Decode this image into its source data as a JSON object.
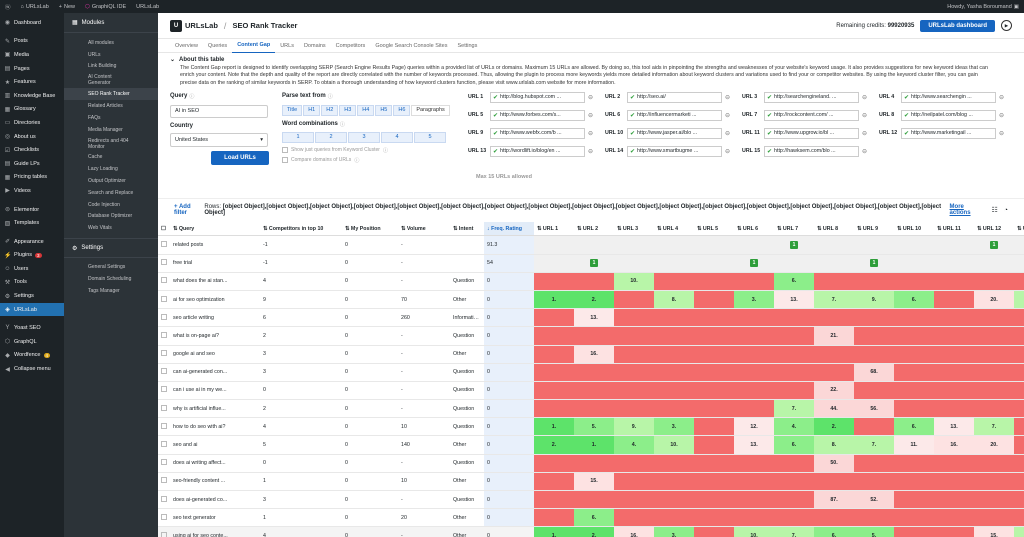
{
  "adminbar": {
    "site": "URLsLab",
    "new": "New",
    "graphiql": "GraphiQL IDE",
    "urlslab": "URLsLab",
    "howdy": "Howdy, Yasha Boroumand"
  },
  "wpmenu": [
    {
      "label": "Dashboard",
      "icon": "dashboard-icon",
      "glyph": "◉"
    },
    {
      "sep": true
    },
    {
      "label": "Posts",
      "icon": "pin-icon",
      "glyph": "✎"
    },
    {
      "label": "Media",
      "icon": "media-icon",
      "glyph": "▣"
    },
    {
      "label": "Pages",
      "icon": "pages-icon",
      "glyph": "▤"
    },
    {
      "label": "Features",
      "icon": "features-icon",
      "glyph": "★"
    },
    {
      "label": "Knowledge Base",
      "icon": "book-icon",
      "glyph": "▥"
    },
    {
      "label": "Glossary",
      "icon": "glossary-icon",
      "glyph": "▦"
    },
    {
      "label": "Directories",
      "icon": "folder-icon",
      "glyph": "▭"
    },
    {
      "label": "About us",
      "icon": "about-icon",
      "glyph": "◎"
    },
    {
      "label": "Checklists",
      "icon": "checklist-icon",
      "glyph": "☑"
    },
    {
      "label": "Guide LPs",
      "icon": "guide-icon",
      "glyph": "▤"
    },
    {
      "label": "Pricing tables",
      "icon": "pricing-icon",
      "glyph": "▦"
    },
    {
      "label": "Videos",
      "icon": "video-icon",
      "glyph": "▶"
    },
    {
      "sep": true
    },
    {
      "label": "Elementor",
      "icon": "elementor-icon",
      "glyph": "⊜"
    },
    {
      "label": "Templates",
      "icon": "templates-icon",
      "glyph": "▧"
    },
    {
      "sep": true
    },
    {
      "label": "Appearance",
      "icon": "brush-icon",
      "glyph": "✐"
    },
    {
      "label": "Plugins",
      "icon": "plugin-icon",
      "glyph": "⚡",
      "badge": "3"
    },
    {
      "label": "Users",
      "icon": "users-icon",
      "glyph": "☺"
    },
    {
      "label": "Tools",
      "icon": "tools-icon",
      "glyph": "⚒"
    },
    {
      "label": "Settings",
      "icon": "settings-icon",
      "glyph": "⚙"
    },
    {
      "label": "URLsLab",
      "icon": "urlslab-icon",
      "glyph": "◈",
      "active": true
    },
    {
      "sep": true
    },
    {
      "label": "Yoast SEO",
      "icon": "yoast-icon",
      "glyph": "Y"
    },
    {
      "label": "GraphQL",
      "icon": "graphql-icon",
      "glyph": "⬡"
    },
    {
      "label": "Wordfence",
      "icon": "wordfence-icon",
      "glyph": "◆",
      "badge": "4",
      "orange": true
    },
    {
      "label": "Collapse menu",
      "icon": "collapse-icon",
      "glyph": "◀"
    }
  ],
  "plugnav": {
    "modules_label": "Modules",
    "modules": [
      "All modules",
      "URLs",
      "Link Building",
      "AI Content Generator",
      "SEO Rank Tracker",
      "Related Articles",
      "FAQs",
      "Media Manager",
      "Redirects and 404 Monitor",
      "Cache",
      "Lazy Loading",
      "Output Optimizer",
      "Search and Replace",
      "Code Injection",
      "Database Optimizer",
      "Web Vitals"
    ],
    "active": "SEO Rank Tracker",
    "settings_label": "Settings",
    "settings": [
      "General Settings",
      "Domain Scheduling",
      "Tags Manager"
    ]
  },
  "header": {
    "logo": "URLsLab",
    "page": "SEO Rank Tracker",
    "credits_label": "Remaining credits:",
    "credits": "99920935",
    "dashboard_btn": "URLsLab dashboard"
  },
  "tabs": [
    "Overview",
    "Queries",
    "Content Gap",
    "URLs",
    "Domains",
    "Competitors",
    "Google Search Console Sites",
    "Settings"
  ],
  "active_tab": "Content Gap",
  "about": {
    "title": "About this table",
    "text": "The Content Gap report is designed to identify overlapping SERP (Search Engine Results Page) queries within a provided list of URLs or domains. Maximum 15 URLs are allowed. By doing so, this tool aids in pinpointing the strengths and weaknesses of your website's keyword usage. It also provides suggestions for new keyword ideas that can enrich your content. Note that the depth and quality of the report are directly correlated with the number of keywords processed. Thus, allowing the plugin to process more keywords yields more detailed information about keyword clusters and variations used to find your or competitor websites. By using the keyword cluster filter, you can gain precise data on the ranking of similar keywords in SERP. To obtain a thorough understanding of how keyword clusters function, please visit www.urlslab.com website for more information."
  },
  "filters": {
    "query_label": "Query",
    "query_value": "AI in SEO",
    "country_label": "Country",
    "country_value": "United States",
    "load_btn": "Load URLs",
    "parse_label": "Parse text from",
    "parse_opts": [
      "Title",
      "H1",
      "H2",
      "H3",
      "H4",
      "H5",
      "H6",
      "Paragraphs"
    ],
    "wc_label": "Word combinations",
    "wc_opts": [
      "1",
      "2",
      "3",
      "4",
      "5"
    ],
    "cb1": "Show just queries from Keyword Cluster",
    "cb2": "Compare domains of URLs",
    "max_urls": "Max 15 URLs allowed"
  },
  "urls": [
    {
      "label": "URL 1",
      "value": "http://blog.hubspot.com ..."
    },
    {
      "label": "URL 2",
      "value": "http://seo.ai/"
    },
    {
      "label": "URL 3",
      "value": "http://searchengineland. ..."
    },
    {
      "label": "URL 4",
      "value": "http://www.searchengin ..."
    },
    {
      "label": "URL 5",
      "value": "http://www.forbes.com/s..."
    },
    {
      "label": "URL 6",
      "value": "http://influencermarketi ..."
    },
    {
      "label": "URL 7",
      "value": "http://rockcontent.com/ ..."
    },
    {
      "label": "URL 8",
      "value": "http://neilpatel.com/blog ..."
    },
    {
      "label": "URL 9",
      "value": "http://www.webfx.com/b ..."
    },
    {
      "label": "URL 10",
      "value": "http://www.jasper.ai/blo ..."
    },
    {
      "label": "URL 11",
      "value": "http://www.upgrow.io/bl ..."
    },
    {
      "label": "URL 12",
      "value": "http://www.marketingail ..."
    },
    {
      "label": "URL 13",
      "value": "http://wordlift.io/blog/en ..."
    },
    {
      "label": "URL 14",
      "value": "http://www.smartbugme ..."
    },
    {
      "label": "URL 15",
      "value": "http://hawksem.com/blo ..."
    }
  ],
  "table": {
    "add_filter": "+ Add filter",
    "rows_label": "Rows:",
    "rows": [
      {
        "q": "related posts",
        "c": "-1",
        "p": "0",
        "v": "-",
        "i": "",
        "f": "91.3",
        "u": [
          null,
          null,
          null,
          null,
          null,
          null,
          "1",
          null,
          null,
          null,
          null,
          "1",
          null
        ],
        "g": true
      },
      {
        "q": "free trial",
        "c": "-1",
        "p": "0",
        "v": "-",
        "i": "",
        "f": "54",
        "u": [
          null,
          "1",
          null,
          null,
          null,
          "1",
          null,
          null,
          "1",
          null,
          null,
          null,
          null
        ],
        "g": true
      },
      {
        "q": "what does the ai stan...",
        "c": "4",
        "p": "0",
        "v": "-",
        "i": "Question",
        "f": "0",
        "u": [
          "",
          "",
          "10.",
          "",
          "",
          "",
          "6.",
          "",
          "",
          "",
          "",
          "",
          ""
        ]
      },
      {
        "q": "ai for seo optimization",
        "c": "9",
        "p": "0",
        "v": "70",
        "i": "Other",
        "f": "0",
        "u": [
          "1.",
          "2.",
          "",
          "8.",
          "",
          "3.",
          "13.",
          "7.",
          "9.",
          "6.",
          "",
          "20.",
          "10."
        ]
      },
      {
        "q": "seo article writing",
        "c": "6",
        "p": "0",
        "v": "260",
        "i": "Informational",
        "f": "0",
        "u": [
          "",
          "13.",
          "",
          "",
          "",
          "",
          "",
          "",
          "",
          "",
          "",
          "",
          ""
        ]
      },
      {
        "q": "what is on-page ai?",
        "c": "2",
        "p": "0",
        "v": "-",
        "i": "Question",
        "f": "0",
        "u": [
          "",
          "",
          "",
          "",
          "",
          "",
          "",
          "21.",
          "",
          "",
          "",
          "",
          ""
        ]
      },
      {
        "q": "google ai and seo",
        "c": "3",
        "p": "0",
        "v": "-",
        "i": "Other",
        "f": "0",
        "u": [
          "",
          "16.",
          "",
          "",
          "",
          "",
          "",
          "",
          "",
          "",
          "",
          "",
          ""
        ]
      },
      {
        "q": "can ai-generated con...",
        "c": "3",
        "p": "0",
        "v": "-",
        "i": "Question",
        "f": "0",
        "u": [
          "",
          "",
          "",
          "",
          "",
          "",
          "",
          "",
          "68.",
          "",
          "",
          "",
          ""
        ]
      },
      {
        "q": "can i use ai in my we...",
        "c": "0",
        "p": "0",
        "v": "-",
        "i": "Question",
        "f": "0",
        "u": [
          "",
          "",
          "",
          "",
          "",
          "",
          "",
          "22.",
          "",
          "",
          "",
          "",
          ""
        ]
      },
      {
        "q": "why is artificial influe...",
        "c": "2",
        "p": "0",
        "v": "-",
        "i": "Question",
        "f": "0",
        "u": [
          "",
          "",
          "",
          "",
          "",
          "",
          "7.",
          "44.",
          "56.",
          "",
          "",
          "",
          ""
        ]
      },
      {
        "q": "how to do seo with ai?",
        "c": "4",
        "p": "0",
        "v": "10",
        "i": "Question",
        "f": "0",
        "u": [
          "1.",
          "5.",
          "9.",
          "3.",
          "",
          "12.",
          "4.",
          "2.",
          "",
          "6.",
          "13.",
          "7.",
          ""
        ]
      },
      {
        "q": "seo and ai",
        "c": "5",
        "p": "0",
        "v": "140",
        "i": "Other",
        "f": "0",
        "u": [
          "2.",
          "1.",
          "4.",
          "10.",
          "",
          "13.",
          "6.",
          "8.",
          "7.",
          "11.",
          "16.",
          "20.",
          ""
        ]
      },
      {
        "q": "does ai writing affect...",
        "c": "0",
        "p": "0",
        "v": "-",
        "i": "Question",
        "f": "0",
        "u": [
          "",
          "",
          "",
          "",
          "",
          "",
          "",
          "50.",
          "",
          "",
          "",
          "",
          ""
        ]
      },
      {
        "q": "seo-friendly content ...",
        "c": "1",
        "p": "0",
        "v": "10",
        "i": "Other",
        "f": "0",
        "u": [
          "",
          "15.",
          "",
          "",
          "",
          "",
          "",
          "",
          "",
          "",
          "",
          "",
          ""
        ]
      },
      {
        "q": "does ai-generated co...",
        "c": "3",
        "p": "0",
        "v": "-",
        "i": "Question",
        "f": "0",
        "u": [
          "",
          "",
          "",
          "",
          "",
          "",
          "",
          "87.",
          "52.",
          "",
          "",
          "",
          ""
        ]
      },
      {
        "q": "seo text generator",
        "c": "1",
        "p": "0",
        "v": "20",
        "i": "Other",
        "f": "0",
        "u": [
          "",
          "6.",
          "",
          "",
          "",
          "",
          "",
          "",
          "",
          "",
          "",
          "",
          ""
        ]
      },
      {
        "q": "using ai for seo conte...",
        "c": "4",
        "p": "0",
        "v": "-",
        "i": "Other",
        "f": "0",
        "u": [
          "1.",
          "2.",
          "16.",
          "3.",
          "",
          "10.",
          "7.",
          "6.",
          "5.",
          "",
          "",
          "15.",
          "9."
        ],
        "sel": true
      }
    ],
    "more_actions": "More actions",
    "headers": [
      "Query",
      "Competitors in top 10",
      "My Position",
      "Volume",
      "Intent",
      "Freq. Rating",
      "URL 1",
      "URL 2",
      "URL 3",
      "URL 4",
      "URL 5",
      "URL 6",
      "URL 7",
      "URL 8",
      "URL 9",
      "URL 10",
      "URL 11",
      "URL 12",
      "URL 13"
    ]
  },
  "colors": {
    "miss": "#f36b6b",
    "rank1": "#5de36a",
    "rank_mid": "#b8f5a8",
    "rank_low": "#fde2e2",
    "accent": "#1665c0"
  }
}
